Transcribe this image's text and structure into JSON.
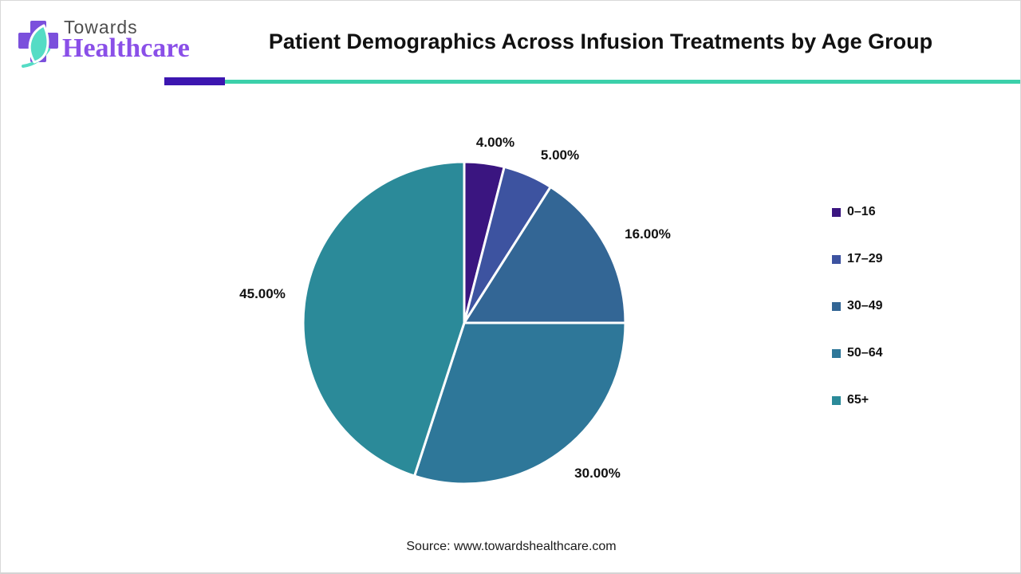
{
  "logo": {
    "towards": "Towards",
    "healthcare": "Healthcare",
    "cross_color": "#7b50dc",
    "leaf_color": "#55dcc5",
    "towards_color": "#4d4d4d",
    "healthcare_color": "#8a4fe8"
  },
  "header": {
    "title": "Patient Demographics Across Infusion Treatments by Age Group",
    "rule_purple_color": "#3c16b0",
    "rule_teal_color": "#3bd0aa"
  },
  "chart_data": {
    "type": "pie",
    "title": "Patient Demographics Across Infusion Treatments by Age Group",
    "categories": [
      "0–16",
      "17–29",
      "30–49",
      "50–64",
      "65+"
    ],
    "values": [
      4,
      5,
      16,
      30,
      45
    ],
    "labels": [
      "4.00%",
      "5.00%",
      "16.00%",
      "30.00%",
      "45.00%"
    ],
    "colors": [
      "#3a1580",
      "#3d53a0",
      "#336695",
      "#2e7799",
      "#2b8a99"
    ],
    "start_angle_deg": 0,
    "direction": "clockwise",
    "slice_border_color": "#ffffff",
    "legend_position": "right"
  },
  "legend": {
    "items": [
      {
        "label": "0–16",
        "color": "#3a1580"
      },
      {
        "label": "17–29",
        "color": "#3d53a0"
      },
      {
        "label": "30–49",
        "color": "#336695"
      },
      {
        "label": "50–64",
        "color": "#2e7799"
      },
      {
        "label": "65+",
        "color": "#2b8a99"
      }
    ]
  },
  "source": {
    "text": "Source: www.towardshealthcare.com"
  }
}
